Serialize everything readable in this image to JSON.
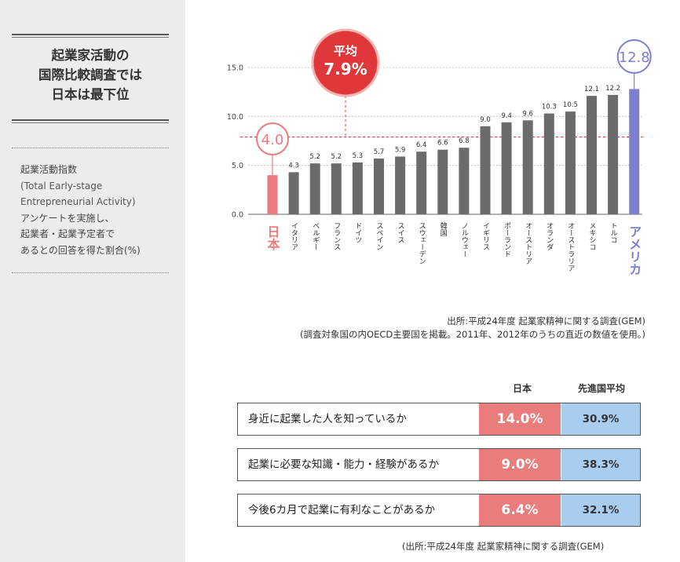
{
  "sidebar": {
    "title_lines": [
      "起業家活動の",
      "国際比較調査では",
      "日本は最下位"
    ],
    "body_lines": [
      "起業活動指数",
      "(Total Early-stage",
      "Entrepreneurial Activity)",
      "アンケートを実施し、",
      "起業者・起業予定者で",
      "あるとの回答を得た割合(%)"
    ]
  },
  "chart_data": {
    "type": "bar",
    "categories": [
      "日本",
      "イタリア",
      "ベルギー",
      "フランス",
      "ドイツ",
      "スペイン",
      "スイス",
      "スウェーデン",
      "韓国",
      "ノルウェー",
      "イギリス",
      "ポーランド",
      "オーストリア",
      "オランダ",
      "オーストラリア",
      "メキシコ",
      "トルコ",
      "アメリカ"
    ],
    "values": [
      4.0,
      4.3,
      5.2,
      5.2,
      5.3,
      5.7,
      5.9,
      6.4,
      6.6,
      6.8,
      9.0,
      9.4,
      9.6,
      10.3,
      10.5,
      12.1,
      12.2,
      12.8
    ],
    "value_labels": [
      "4.0",
      "4.3",
      "5.2",
      "5.2",
      "5.3",
      "5.7",
      "5.9",
      "6.4",
      "6.6",
      "6.8",
      "9.0",
      "9.4",
      "9.6",
      "10.3",
      "10.5",
      "12.1",
      "12.2",
      "12.8"
    ],
    "y_ticks": [
      "0.0",
      "5.0",
      "10.0",
      "15.0"
    ],
    "ylim": [
      0,
      15
    ],
    "grid": true,
    "average": {
      "label": "平均",
      "value_label": "7.9%",
      "value": 7.9
    },
    "colors": {
      "default": "#6b6b6b",
      "japan": "#ea7c7c",
      "usa": "#7b7fd1",
      "average": "#e0383a"
    }
  },
  "source_note": {
    "line1": "出所:平成24年度 起業家精神に関する調査(GEM)",
    "line2": "(調査対象国の内OECD主要国を掲載。2011年、2012年のうちの直近の数値を使用。)"
  },
  "comparison": {
    "col_japan": "日本",
    "col_avg": "先進国平均",
    "rows": [
      {
        "label": "身近に起業した人を知っているか",
        "japan": "14.0%",
        "avg": "30.9%"
      },
      {
        "label": "起業に必要な知識・能力・経験があるか",
        "japan": "9.0%",
        "avg": "38.3%"
      },
      {
        "label": "今後6カ月で起業に有利なことがあるか",
        "japan": "6.4%",
        "avg": "32.1%"
      }
    ],
    "source": "(出所:平成24年度 起業家精神に関する調査(GEM)"
  }
}
